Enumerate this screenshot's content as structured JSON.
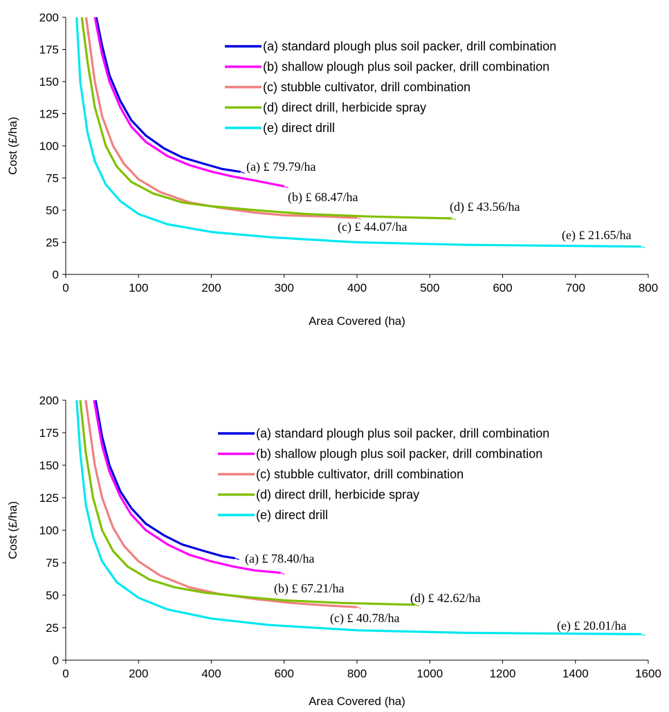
{
  "chart_data": [
    {
      "type": "line",
      "xlabel": "Area Covered (ha)",
      "ylabel": "Cost (£/ha)",
      "xlim": [
        0,
        800
      ],
      "ylim": [
        0,
        200
      ],
      "x_ticks": [
        "0",
        "100",
        "200",
        "300",
        "400",
        "500",
        "600",
        "700",
        "800"
      ],
      "y_ticks": [
        "0",
        "25",
        "50",
        "75",
        "100",
        "125",
        "150",
        "175",
        "200"
      ],
      "grid": false,
      "legend_position": "top-right",
      "series": [
        {
          "name": "(a) standard plough plus soil packer, drill combination",
          "color": "#0000e0",
          "x": [
            42,
            50,
            60,
            75,
            90,
            110,
            135,
            160,
            190,
            215,
            240
          ],
          "y": [
            200,
            178,
            155,
            135,
            120,
            108,
            98,
            91,
            86,
            82,
            79.79
          ],
          "annotation": "(a) £ 79.79/ha"
        },
        {
          "name": "(b) shallow plough plus soil packer, drill combination",
          "color": "#ff00ff",
          "x": [
            40,
            50,
            60,
            75,
            90,
            110,
            140,
            170,
            200,
            230,
            260,
            300
          ],
          "y": [
            200,
            171,
            150,
            130,
            115,
            103,
            92,
            85,
            80,
            76,
            73,
            68.47
          ],
          "annotation": "(b) £ 68.47/ha"
        },
        {
          "name": "(c) stubble cultivator, drill combination",
          "color": "#f08080",
          "x": [
            28,
            40,
            50,
            65,
            80,
            100,
            130,
            170,
            210,
            260,
            300,
            360,
            400
          ],
          "y": [
            200,
            150,
            123,
            100,
            86,
            74,
            64,
            56,
            52,
            48,
            46,
            45,
            44.07
          ],
          "annotation": "(c) £ 44.07/ha"
        },
        {
          "name": "(d) direct drill, herbicide spray",
          "color": "#80c000",
          "x": [
            22,
            30,
            40,
            55,
            70,
            90,
            120,
            160,
            200,
            260,
            330,
            420,
            530
          ],
          "y": [
            200,
            165,
            130,
            100,
            84,
            72,
            63,
            56,
            53,
            50,
            47,
            45,
            43.56
          ],
          "annotation": "(d) £ 43.56/ha"
        },
        {
          "name": "(e) direct drill",
          "color": "#00e8f0",
          "x": [
            15,
            20,
            30,
            40,
            55,
            75,
            100,
            140,
            200,
            280,
            400,
            550,
            790
          ],
          "y": [
            200,
            150,
            110,
            88,
            70,
            57,
            47,
            39,
            33,
            29,
            25,
            23,
            21.65
          ],
          "annotation": "(e) £ 21.65/ha"
        }
      ]
    },
    {
      "type": "line",
      "xlabel": "Area Covered (ha)",
      "ylabel": "Cost (£/ha)",
      "xlim": [
        0,
        1600
      ],
      "ylim": [
        0,
        200
      ],
      "x_ticks": [
        "0",
        "200",
        "400",
        "600",
        "800",
        "1000",
        "1200",
        "1400",
        "1600"
      ],
      "y_ticks": [
        "0",
        "25",
        "50",
        "75",
        "100",
        "125",
        "150",
        "175",
        "200"
      ],
      "grid": false,
      "legend_position": "top-right",
      "series": [
        {
          "name": "(a) standard plough plus soil packer, drill combination",
          "color": "#0000e0",
          "x": [
            82,
            100,
            120,
            150,
            180,
            220,
            270,
            320,
            380,
            430,
            465
          ],
          "y": [
            200,
            172,
            150,
            130,
            117,
            105,
            96,
            89,
            84,
            80,
            78.4
          ],
          "annotation": "(a) £ 78.40/ha"
        },
        {
          "name": "(b) shallow plough plus soil packer, drill combination",
          "color": "#ff00ff",
          "x": [
            78,
            100,
            120,
            150,
            180,
            220,
            280,
            340,
            400,
            460,
            520,
            590
          ],
          "y": [
            200,
            165,
            145,
            126,
            112,
            100,
            89,
            81,
            76,
            72,
            69,
            67.21
          ],
          "annotation": "(b) £ 67.21/ha"
        },
        {
          "name": "(c) stubble cultivator, drill combination",
          "color": "#f08080",
          "x": [
            55,
            80,
            100,
            130,
            160,
            200,
            260,
            340,
            420,
            520,
            620,
            720,
            800
          ],
          "y": [
            200,
            150,
            125,
            102,
            88,
            76,
            65,
            56,
            51,
            47,
            44,
            42,
            40.78
          ],
          "annotation": "(c) £ 40.78/ha"
        },
        {
          "name": "(d) direct drill, herbicide spray",
          "color": "#80c000",
          "x": [
            40,
            55,
            75,
            100,
            130,
            170,
            230,
            300,
            380,
            480,
            600,
            760,
            960
          ],
          "y": [
            200,
            160,
            125,
            100,
            84,
            72,
            62,
            56,
            52,
            49,
            46,
            44,
            42.62
          ],
          "annotation": "(d) £ 42.62/ha"
        },
        {
          "name": "(e) direct drill",
          "color": "#00e8f0",
          "x": [
            30,
            40,
            55,
            75,
            100,
            140,
            200,
            280,
            400,
            560,
            800,
            1100,
            1580
          ],
          "y": [
            200,
            160,
            120,
            95,
            76,
            60,
            48,
            39,
            32,
            27,
            23,
            21,
            20.01
          ],
          "annotation": "(e) £ 20.01/ha"
        }
      ]
    }
  ]
}
